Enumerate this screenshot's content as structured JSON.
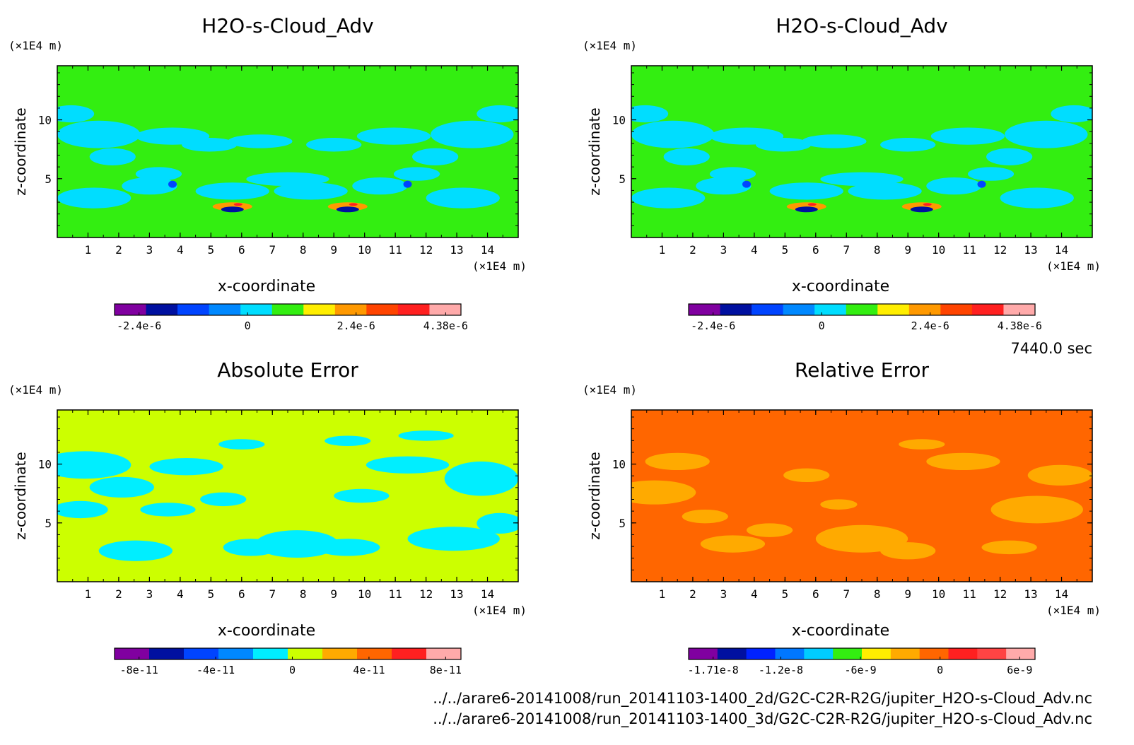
{
  "chart_data": [
    {
      "type": "heatmap",
      "title": "H2O-s-Cloud_Adv",
      "xlabel": "x-coordinate",
      "ylabel": "z-coordinate",
      "x_unit": "(×1E4 m)",
      "y_unit": "(×1E4 m)",
      "xlim": [
        0,
        15
      ],
      "ylim": [
        0,
        14.6
      ],
      "xticks": [
        "1",
        "2",
        "3",
        "4",
        "5",
        "6",
        "7",
        "8",
        "9",
        "10",
        "11",
        "12",
        "13",
        "14"
      ],
      "yticks": [
        "5",
        "10"
      ],
      "background_level": "0 (green)",
      "colorbar": {
        "colors": [
          "#8000a0",
          "#0010a0",
          "#0044ff",
          "#0088ff",
          "#00ddff",
          "#33ee11",
          "#ffee00",
          "#ff9900",
          "#ff4400",
          "#ff2020",
          "#ffaaaa"
        ],
        "labels": [
          "-2.4e-6",
          "0",
          "2.4e-6",
          "4.38e-6"
        ],
        "label_values": [
          -2.4e-06,
          0,
          2.4e-06,
          4.38e-06
        ]
      }
    },
    {
      "type": "heatmap",
      "title": "H2O-s-Cloud_Adv",
      "xlabel": "x-coordinate",
      "ylabel": "z-coordinate",
      "x_unit": "(×1E4 m)",
      "y_unit": "(×1E4 m)",
      "xlim": [
        0,
        15
      ],
      "ylim": [
        0,
        14.6
      ],
      "xticks": [
        "1",
        "2",
        "3",
        "4",
        "5",
        "6",
        "7",
        "8",
        "9",
        "10",
        "11",
        "12",
        "13",
        "14"
      ],
      "yticks": [
        "5",
        "10"
      ],
      "background_level": "0 (green)",
      "colorbar": {
        "colors": [
          "#8000a0",
          "#0010a0",
          "#0044ff",
          "#0088ff",
          "#00ddff",
          "#33ee11",
          "#ffee00",
          "#ff9900",
          "#ff4400",
          "#ff2020",
          "#ffaaaa"
        ],
        "labels": [
          "-2.4e-6",
          "0",
          "2.4e-6",
          "4.38e-6"
        ],
        "label_values": [
          -2.4e-06,
          0,
          2.4e-06,
          4.38e-06
        ]
      }
    },
    {
      "type": "heatmap",
      "title": "Absolute Error",
      "xlabel": "x-coordinate",
      "ylabel": "z-coordinate",
      "x_unit": "(×1E4 m)",
      "y_unit": "(×1E4 m)",
      "xlim": [
        0,
        15
      ],
      "ylim": [
        0,
        14.6
      ],
      "xticks": [
        "1",
        "2",
        "3",
        "4",
        "5",
        "6",
        "7",
        "8",
        "9",
        "10",
        "11",
        "12",
        "13",
        "14"
      ],
      "yticks": [
        "5",
        "10"
      ],
      "background_level": "0 (yellow-green)",
      "colorbar": {
        "colors": [
          "#8000a0",
          "#0010a0",
          "#0044ff",
          "#0088ff",
          "#00eeff",
          "#ccff00",
          "#ffaa00",
          "#ff6600",
          "#ff2020",
          "#ffaaaa"
        ],
        "labels": [
          "-8e-11",
          "-4e-11",
          "0",
          "4e-11",
          "8e-11"
        ],
        "label_values": [
          -8e-11,
          -4e-11,
          0,
          4e-11,
          8e-11
        ]
      }
    },
    {
      "type": "heatmap",
      "title": "Relative Error",
      "xlabel": "x-coordinate",
      "ylabel": "z-coordinate",
      "x_unit": "(×1E4 m)",
      "y_unit": "(×1E4 m)",
      "xlim": [
        0,
        15
      ],
      "ylim": [
        0,
        14.6
      ],
      "xticks": [
        "1",
        "2",
        "3",
        "4",
        "5",
        "6",
        "7",
        "8",
        "9",
        "10",
        "11",
        "12",
        "13",
        "14"
      ],
      "yticks": [
        "5",
        "10"
      ],
      "background_level": "0 (orange)",
      "colorbar": {
        "colors": [
          "#8000a0",
          "#0010a0",
          "#0022ff",
          "#0077ff",
          "#00ccff",
          "#33ee11",
          "#ffee00",
          "#ffaa00",
          "#ff6600",
          "#ff2020",
          "#ff4444",
          "#ffaaaa"
        ],
        "labels": [
          "-1.71e-8",
          "-1.2e-8",
          "-6e-9",
          "0",
          "6e-9"
        ],
        "label_values": [
          -1.71e-08,
          -1.2e-08,
          -6e-09,
          0,
          6e-09
        ]
      }
    }
  ],
  "time_label": "7440.0 sec",
  "footer": {
    "line1": "../../arare6-20141008/run_20141103-1400_2d/G2C-C2R-R2G/jupiter_H2O-s-Cloud_Adv.nc",
    "line2": "../../arare6-20141008/run_20141103-1400_3d/G2C-C2R-R2G/jupiter_H2O-s-Cloud_Adv.nc"
  }
}
